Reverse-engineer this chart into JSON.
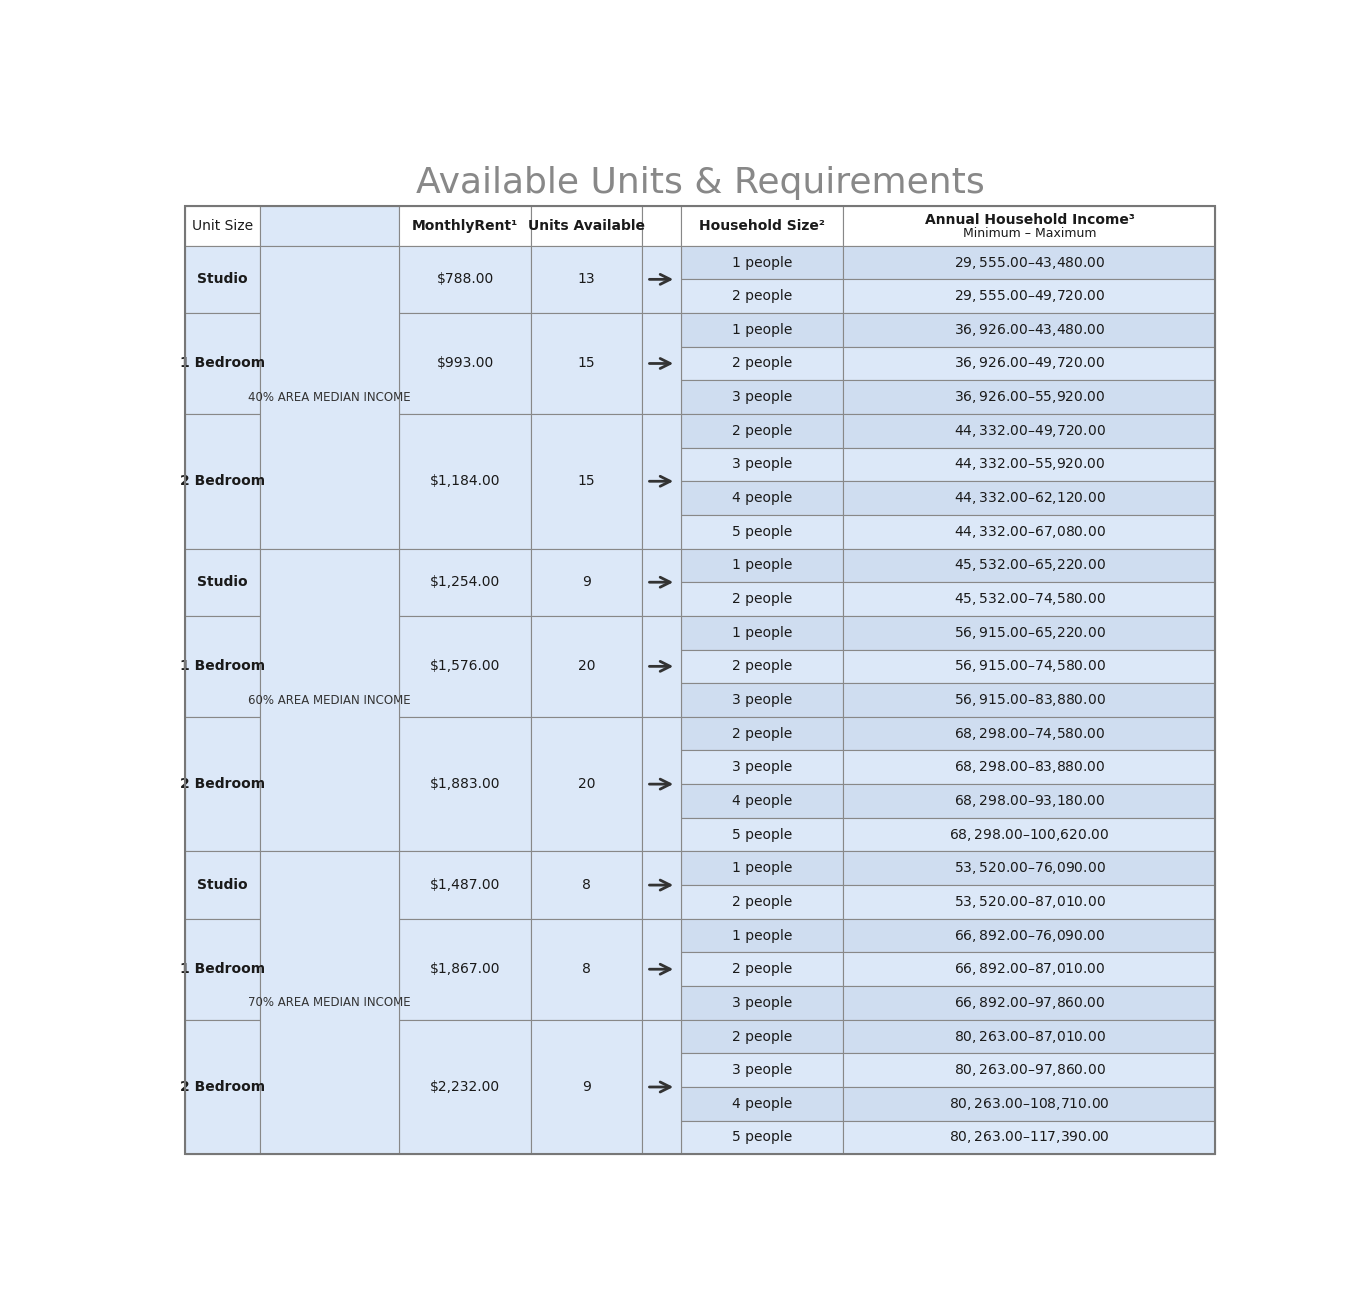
{
  "title": "Available Units & Requirements",
  "title_fontsize": 26,
  "title_color": "#888888",
  "title_font": "Georgia",
  "bg_color": "#ffffff",
  "cell_bg_light": "#cfddf0",
  "cell_bg_lighter": "#dce8f8",
  "cell_bg_white": "#ffffff",
  "border_color": "#888888",
  "text_color": "#1a1a1a",
  "ami_groups": [
    {
      "ami_label": "40% AREA MEDIAN INCOME",
      "units": [
        {
          "unit_size": "Studio",
          "monthly_rent": "$788.00",
          "units_available": "13",
          "rows": [
            {
              "household_size": "1 people",
              "income": "$29,555.00–$43,480.00"
            },
            {
              "household_size": "2 people",
              "income": "$29,555.00–$49,720.00"
            }
          ]
        },
        {
          "unit_size": "1 Bedroom",
          "monthly_rent": "$993.00",
          "units_available": "15",
          "rows": [
            {
              "household_size": "1 people",
              "income": "$36,926.00–$43,480.00"
            },
            {
              "household_size": "2 people",
              "income": "$36,926.00–$49,720.00"
            },
            {
              "household_size": "3 people",
              "income": "$36,926.00–$55,920.00"
            }
          ]
        },
        {
          "unit_size": "2 Bedroom",
          "monthly_rent": "$1,184.00",
          "units_available": "15",
          "rows": [
            {
              "household_size": "2 people",
              "income": "$44,332.00–$49,720.00"
            },
            {
              "household_size": "3 people",
              "income": "$44,332.00–$55,920.00"
            },
            {
              "household_size": "4 people",
              "income": "$44,332.00–$62,120.00"
            },
            {
              "household_size": "5 people",
              "income": "$44,332.00–$67,080.00"
            }
          ]
        }
      ]
    },
    {
      "ami_label": "60% AREA MEDIAN INCOME",
      "units": [
        {
          "unit_size": "Studio",
          "monthly_rent": "$1,254.00",
          "units_available": "9",
          "rows": [
            {
              "household_size": "1 people",
              "income": "$45,532.00–$65,220.00"
            },
            {
              "household_size": "2 people",
              "income": "$45,532.00–$74,580.00"
            }
          ]
        },
        {
          "unit_size": "1 Bedroom",
          "monthly_rent": "$1,576.00",
          "units_available": "20",
          "rows": [
            {
              "household_size": "1 people",
              "income": "$56,915.00–$65,220.00"
            },
            {
              "household_size": "2 people",
              "income": "$56,915.00–$74,580.00"
            },
            {
              "household_size": "3 people",
              "income": "$56,915.00–$83,880.00"
            }
          ]
        },
        {
          "unit_size": "2 Bedroom",
          "monthly_rent": "$1,883.00",
          "units_available": "20",
          "rows": [
            {
              "household_size": "2 people",
              "income": "$68,298.00–$74,580.00"
            },
            {
              "household_size": "3 people",
              "income": "$68,298.00–$83,880.00"
            },
            {
              "household_size": "4 people",
              "income": "$68,298.00–$93,180.00"
            },
            {
              "household_size": "5 people",
              "income": "$68,298.00–$100,620.00"
            }
          ]
        }
      ]
    },
    {
      "ami_label": "70% AREA MEDIAN INCOME",
      "units": [
        {
          "unit_size": "Studio",
          "monthly_rent": "$1,487.00",
          "units_available": "8",
          "rows": [
            {
              "household_size": "1 people",
              "income": "$53,520.00–$76,090.00"
            },
            {
              "household_size": "2 people",
              "income": "$53,520.00–$87,010.00"
            }
          ]
        },
        {
          "unit_size": "1 Bedroom",
          "monthly_rent": "$1,867.00",
          "units_available": "8",
          "rows": [
            {
              "household_size": "1 people",
              "income": "$66,892.00–$76,090.00"
            },
            {
              "household_size": "2 people",
              "income": "$66,892.00–$87,010.00"
            },
            {
              "household_size": "3 people",
              "income": "$66,892.00–$97,860.00"
            }
          ]
        },
        {
          "unit_size": "2 Bedroom",
          "monthly_rent": "$2,232.00",
          "units_available": "9",
          "rows": [
            {
              "household_size": "2 people",
              "income": "$80,263.00–$87,010.00"
            },
            {
              "household_size": "3 people",
              "income": "$80,263.00–$97,860.00"
            },
            {
              "household_size": "4 people",
              "income": "$80,263.00–$108,710.00"
            },
            {
              "household_size": "5 people",
              "income": "$80,263.00–$117,390.00"
            }
          ]
        }
      ]
    }
  ]
}
